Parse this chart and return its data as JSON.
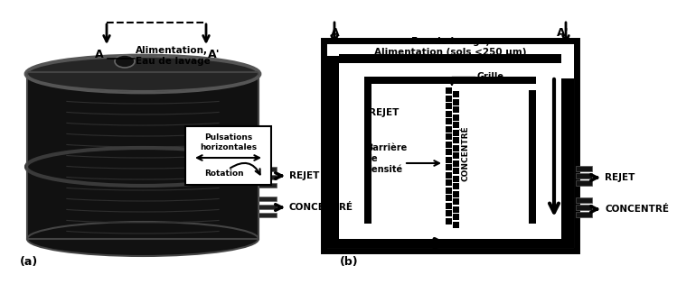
{
  "fig_width": 6.74,
  "fig_height": 2.95,
  "bg_color": "#ffffff",
  "label_a": "(a)",
  "label_b": "(b)",
  "text_alimentation_a": "Alimentation,\nEau de lavage",
  "text_pulsations": "Pulsations\nhorizontales",
  "text_rotation": "Rotation",
  "text_rejet_a": "REJET",
  "text_concentre_a": "CONCENTRÉ",
  "text_eau_lavage_b": "Eau de lavage,\nAlimentation (sols <250 μm)",
  "text_grille": "Grille",
  "text_rejet_b": "REJET",
  "text_concentre_b": "CONCENTRÉ",
  "text_barriere": "Barrière\nde\ndensité",
  "text_concentre_vertical": "CONCENTRÉ",
  "label_A_left": "A",
  "label_A_right": "A'"
}
